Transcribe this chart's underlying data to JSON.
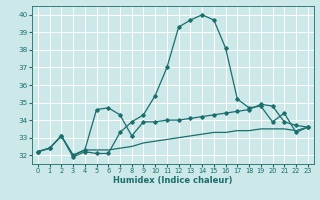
{
  "xlabel": "Humidex (Indice chaleur)",
  "bg_color": "#cce8e8",
  "grid_color": "#ffffff",
  "line_color": "#1a6e6e",
  "xlim": [
    -0.5,
    23.5
  ],
  "ylim": [
    31.5,
    40.5
  ],
  "xticks": [
    0,
    1,
    2,
    3,
    4,
    5,
    6,
    7,
    8,
    9,
    10,
    11,
    12,
    13,
    14,
    15,
    16,
    17,
    18,
    19,
    20,
    21,
    22,
    23
  ],
  "yticks": [
    32,
    33,
    34,
    35,
    36,
    37,
    38,
    39,
    40
  ],
  "series1_x": [
    0,
    1,
    2,
    3,
    4,
    5,
    6,
    7,
    8,
    9,
    10,
    11,
    12,
    13,
    14,
    15,
    16,
    17,
    18,
    19,
    20,
    21,
    22,
    23
  ],
  "series1_y": [
    32.2,
    32.4,
    33.1,
    31.9,
    32.2,
    32.1,
    32.1,
    33.3,
    33.9,
    34.3,
    35.4,
    37.0,
    39.3,
    39.7,
    40.0,
    39.7,
    38.1,
    35.2,
    34.7,
    34.8,
    33.9,
    34.4,
    33.3,
    33.6
  ],
  "series2_x": [
    0,
    1,
    2,
    3,
    4,
    5,
    6,
    7,
    8,
    9,
    10,
    11,
    12,
    13,
    14,
    15,
    16,
    17,
    18,
    19,
    20,
    21,
    22,
    23
  ],
  "series2_y": [
    32.2,
    32.4,
    33.1,
    32.0,
    32.3,
    34.6,
    34.7,
    34.3,
    33.1,
    33.9,
    33.9,
    34.0,
    34.0,
    34.1,
    34.2,
    34.3,
    34.4,
    34.5,
    34.6,
    34.9,
    34.8,
    33.9,
    33.7,
    33.6
  ],
  "series3_x": [
    0,
    1,
    2,
    3,
    4,
    5,
    6,
    7,
    8,
    9,
    10,
    11,
    12,
    13,
    14,
    15,
    16,
    17,
    18,
    19,
    20,
    21,
    22,
    23
  ],
  "series3_y": [
    32.2,
    32.4,
    33.1,
    32.0,
    32.3,
    32.3,
    32.3,
    32.4,
    32.5,
    32.7,
    32.8,
    32.9,
    33.0,
    33.1,
    33.2,
    33.3,
    33.3,
    33.4,
    33.4,
    33.5,
    33.5,
    33.5,
    33.4,
    33.6
  ]
}
